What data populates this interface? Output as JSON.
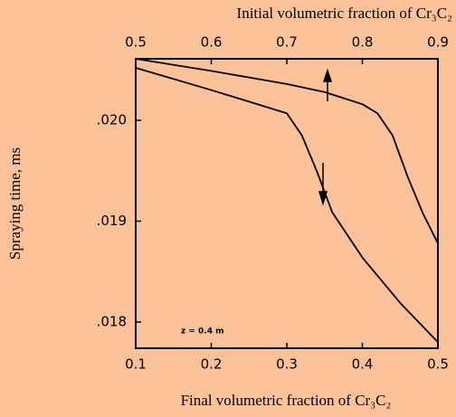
{
  "chart_data": {
    "type": "line",
    "title": "Initial volumetric fraction of Cr₃C₂",
    "x_label": "Final volumetric fraction of  Cr₃C₂",
    "y_label": "Spraying time, ms",
    "annotation": "z = 0.4 m",
    "xlim": [
      0.1,
      0.5
    ],
    "xticks": [
      0.1,
      0.2,
      0.3,
      0.4,
      0.5
    ],
    "x2lim": [
      0.5,
      0.9
    ],
    "x2ticks": [
      0.5,
      0.6,
      0.7,
      0.8,
      0.9
    ],
    "ylim": [
      0.01774,
      0.02061
    ],
    "yticks": [
      {
        "value": 0.018,
        "label": ".018"
      },
      {
        "value": 0.019,
        "label": ".019"
      },
      {
        "value": 0.02,
        "label": ".020"
      }
    ],
    "series": [
      {
        "axis": "x2",
        "color": "#000000",
        "x": [
          0.5,
          0.6,
          0.7,
          0.75,
          0.8,
          0.82,
          0.84,
          0.86,
          0.88,
          0.9
        ],
        "values": [
          0.02061,
          0.02049,
          0.02036,
          0.02028,
          0.02016,
          0.02007,
          0.01985,
          0.01944,
          0.01908,
          0.01878
        ]
      },
      {
        "axis": "x",
        "color": "#000000",
        "x": [
          0.1,
          0.2,
          0.3,
          0.32,
          0.34,
          0.36,
          0.4,
          0.45,
          0.5
        ],
        "values": [
          0.02052,
          0.0203,
          0.02007,
          0.01985,
          0.01949,
          0.01909,
          0.01864,
          0.01819,
          0.0178
        ]
      }
    ]
  }
}
